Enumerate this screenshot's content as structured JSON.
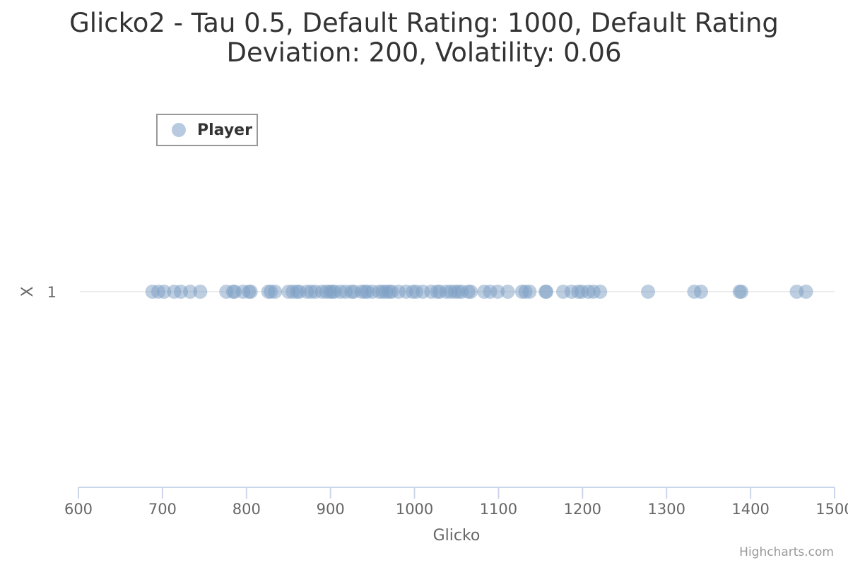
{
  "chart_data": {
    "type": "scatter",
    "title_line1": "Glicko2 - Tau 0.5, Default Rating: 1000, Default Rating",
    "title_line2": "Deviation: 200, Volatility: 0.06",
    "xlabel": "Glicko",
    "ylabel": "X",
    "xlim": [
      600,
      1500
    ],
    "x_ticks": [
      "600",
      "700",
      "800",
      "900",
      "1000",
      "1100",
      "1200",
      "1300",
      "1400",
      "1500"
    ],
    "y_categories": [
      "1"
    ],
    "legend": {
      "position": "top-left",
      "entries": [
        "Player"
      ]
    },
    "series": [
      {
        "name": "Player",
        "color": "#7c9ec4",
        "y": 1,
        "x": [
          688,
          695,
          702,
          714,
          722,
          733,
          745,
          776,
          784,
          786,
          796,
          803,
          805,
          826,
          829,
          834,
          850,
          855,
          860,
          863,
          872,
          877,
          882,
          890,
          895,
          899,
          902,
          905,
          912,
          918,
          925,
          928,
          937,
          941,
          944,
          950,
          958,
          962,
          966,
          970,
          973,
          981,
          990,
          998,
          1002,
          1010,
          1020,
          1027,
          1030,
          1038,
          1043,
          1048,
          1052,
          1056,
          1064,
          1067,
          1083,
          1090,
          1099,
          1111,
          1128,
          1132,
          1137,
          1156,
          1157,
          1177,
          1187,
          1195,
          1199,
          1207,
          1213,
          1221,
          1278,
          1333,
          1341,
          1387,
          1389,
          1455,
          1466
        ]
      }
    ]
  },
  "credits": "Highcharts.com"
}
